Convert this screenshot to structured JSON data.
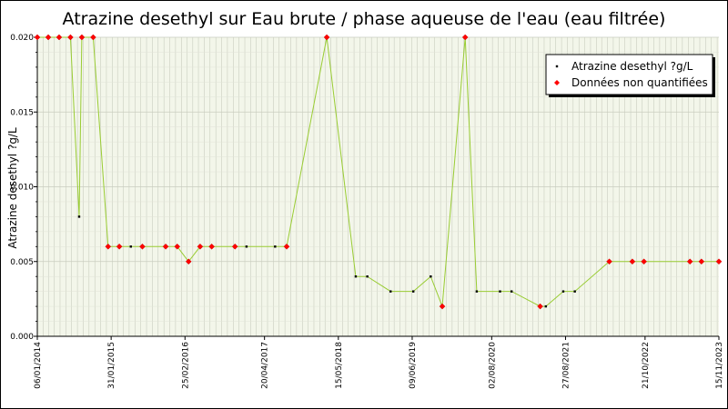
{
  "chart_data": {
    "type": "line",
    "title": "Atrazine desethyl sur Eau brute / phase aqueuse de l'eau (eau filtrée)",
    "ylabel": "Atrazine desethyl ?g/L",
    "xlabel": "",
    "ylim": [
      0,
      0.02
    ],
    "xlim": [
      "06/01/2014",
      "15/11/2023"
    ],
    "y_ticks": [
      "0.000",
      "0.005",
      "0.010",
      "0.015",
      "0.020"
    ],
    "x_ticks": [
      "06/01/2014",
      "31/01/2015",
      "25/02/2016",
      "20/04/2017",
      "15/05/2018",
      "09/06/2019",
      "02/08/2020",
      "27/08/2021",
      "21/10/2022",
      "15/11/2023"
    ],
    "grid": true,
    "legend_position": "top-right",
    "legend": [
      {
        "label": "Atrazine desethyl ?g/L",
        "color": "#000000",
        "marker": "dot"
      },
      {
        "label": "Données non quantifiées",
        "color": "#ff0000",
        "marker": "diamond"
      }
    ],
    "line_color": "#99cc33",
    "points": [
      {
        "date": "06/01/2014",
        "value": 0.02,
        "quantified": false
      },
      {
        "date": "05/03/2014",
        "value": 0.02,
        "quantified": false
      },
      {
        "date": "01/05/2014",
        "value": 0.02,
        "quantified": false
      },
      {
        "date": "30/06/2014",
        "value": 0.02,
        "quantified": false
      },
      {
        "date": "15/08/2014",
        "value": 0.008,
        "quantified": true
      },
      {
        "date": "29/08/2014",
        "value": 0.02,
        "quantified": false
      },
      {
        "date": "28/10/2014",
        "value": 0.02,
        "quantified": false
      },
      {
        "date": "15/01/2015",
        "value": 0.006,
        "quantified": false
      },
      {
        "date": "15/03/2015",
        "value": 0.006,
        "quantified": false
      },
      {
        "date": "15/05/2015",
        "value": 0.006,
        "quantified": true
      },
      {
        "date": "15/07/2015",
        "value": 0.006,
        "quantified": false
      },
      {
        "date": "15/11/2015",
        "value": 0.006,
        "quantified": false
      },
      {
        "date": "15/01/2016",
        "value": 0.006,
        "quantified": false
      },
      {
        "date": "15/03/2016",
        "value": 0.005,
        "quantified": false
      },
      {
        "date": "15/05/2016",
        "value": 0.006,
        "quantified": false
      },
      {
        "date": "15/07/2016",
        "value": 0.006,
        "quantified": false
      },
      {
        "date": "15/11/2016",
        "value": 0.006,
        "quantified": false
      },
      {
        "date": "15/01/2017",
        "value": 0.006,
        "quantified": true
      },
      {
        "date": "15/06/2017",
        "value": 0.006,
        "quantified": true
      },
      {
        "date": "15/08/2017",
        "value": 0.006,
        "quantified": false
      },
      {
        "date": "15/03/2018",
        "value": 0.02,
        "quantified": false
      },
      {
        "date": "15/08/2018",
        "value": 0.004,
        "quantified": true
      },
      {
        "date": "15/10/2018",
        "value": 0.004,
        "quantified": true
      },
      {
        "date": "15/02/2019",
        "value": 0.003,
        "quantified": true
      },
      {
        "date": "15/06/2019",
        "value": 0.003,
        "quantified": true
      },
      {
        "date": "15/09/2019",
        "value": 0.004,
        "quantified": true
      },
      {
        "date": "15/11/2019",
        "value": 0.002,
        "quantified": false
      },
      {
        "date": "15/03/2020",
        "value": 0.02,
        "quantified": false
      },
      {
        "date": "15/05/2020",
        "value": 0.003,
        "quantified": true
      },
      {
        "date": "15/09/2020",
        "value": 0.003,
        "quantified": true
      },
      {
        "date": "15/11/2020",
        "value": 0.003,
        "quantified": true
      },
      {
        "date": "15/04/2021",
        "value": 0.002,
        "quantified": false
      },
      {
        "date": "15/05/2021",
        "value": 0.002,
        "quantified": true
      },
      {
        "date": "15/08/2021",
        "value": 0.003,
        "quantified": true
      },
      {
        "date": "15/10/2021",
        "value": 0.003,
        "quantified": true
      },
      {
        "date": "15/04/2022",
        "value": 0.005,
        "quantified": false
      },
      {
        "date": "15/08/2022",
        "value": 0.005,
        "quantified": false
      },
      {
        "date": "15/10/2022",
        "value": 0.005,
        "quantified": false
      },
      {
        "date": "15/06/2023",
        "value": 0.005,
        "quantified": false
      },
      {
        "date": "15/08/2023",
        "value": 0.005,
        "quantified": false
      },
      {
        "date": "15/11/2023",
        "value": 0.005,
        "quantified": false
      }
    ]
  }
}
